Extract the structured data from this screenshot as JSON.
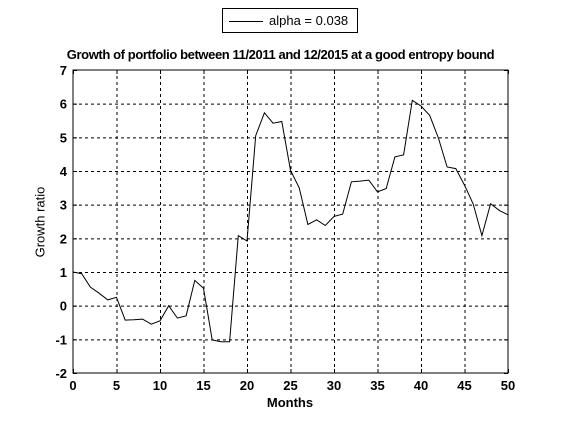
{
  "chart_data": {
    "type": "line",
    "title": "Growth of portfolio between 11/2011 and 12/2015 at a good entropy bound",
    "xlabel": "Months",
    "ylabel": "Growth ratio",
    "xlim": [
      0,
      50
    ],
    "ylim": [
      -2,
      7
    ],
    "xticks": [
      0,
      5,
      10,
      15,
      20,
      25,
      30,
      35,
      40,
      45,
      50
    ],
    "yticks": [
      -2,
      -1,
      0,
      1,
      2,
      3,
      4,
      5,
      6,
      7
    ],
    "grid": true,
    "legend_position": "top-center",
    "series": [
      {
        "name": "alpha = 0.038",
        "color": "#000000",
        "x": [
          0,
          1,
          2,
          3,
          4,
          5,
          6,
          7,
          8,
          9,
          10,
          11,
          12,
          13,
          14,
          15,
          16,
          17,
          18,
          19,
          20,
          21,
          22,
          23,
          24,
          25,
          26,
          27,
          28,
          29,
          30,
          31,
          32,
          33,
          34,
          35,
          36,
          37,
          38,
          39,
          40,
          41,
          42,
          43,
          44,
          45,
          46,
          47,
          48,
          49,
          50
        ],
        "y": [
          1.0,
          0.95,
          0.55,
          0.37,
          0.17,
          0.25,
          -0.43,
          -0.42,
          -0.4,
          -0.55,
          -0.45,
          0.0,
          -0.37,
          -0.3,
          0.75,
          0.52,
          -1.02,
          -1.07,
          -1.07,
          2.08,
          1.92,
          5.05,
          5.73,
          5.42,
          5.47,
          4.02,
          3.5,
          2.41,
          2.55,
          2.38,
          2.65,
          2.72,
          3.68,
          3.7,
          3.73,
          3.38,
          3.48,
          4.42,
          4.48,
          6.1,
          5.93,
          5.65,
          4.98,
          4.12,
          4.07,
          3.58,
          3.02,
          2.08,
          3.03,
          2.83,
          2.7
        ]
      }
    ]
  }
}
